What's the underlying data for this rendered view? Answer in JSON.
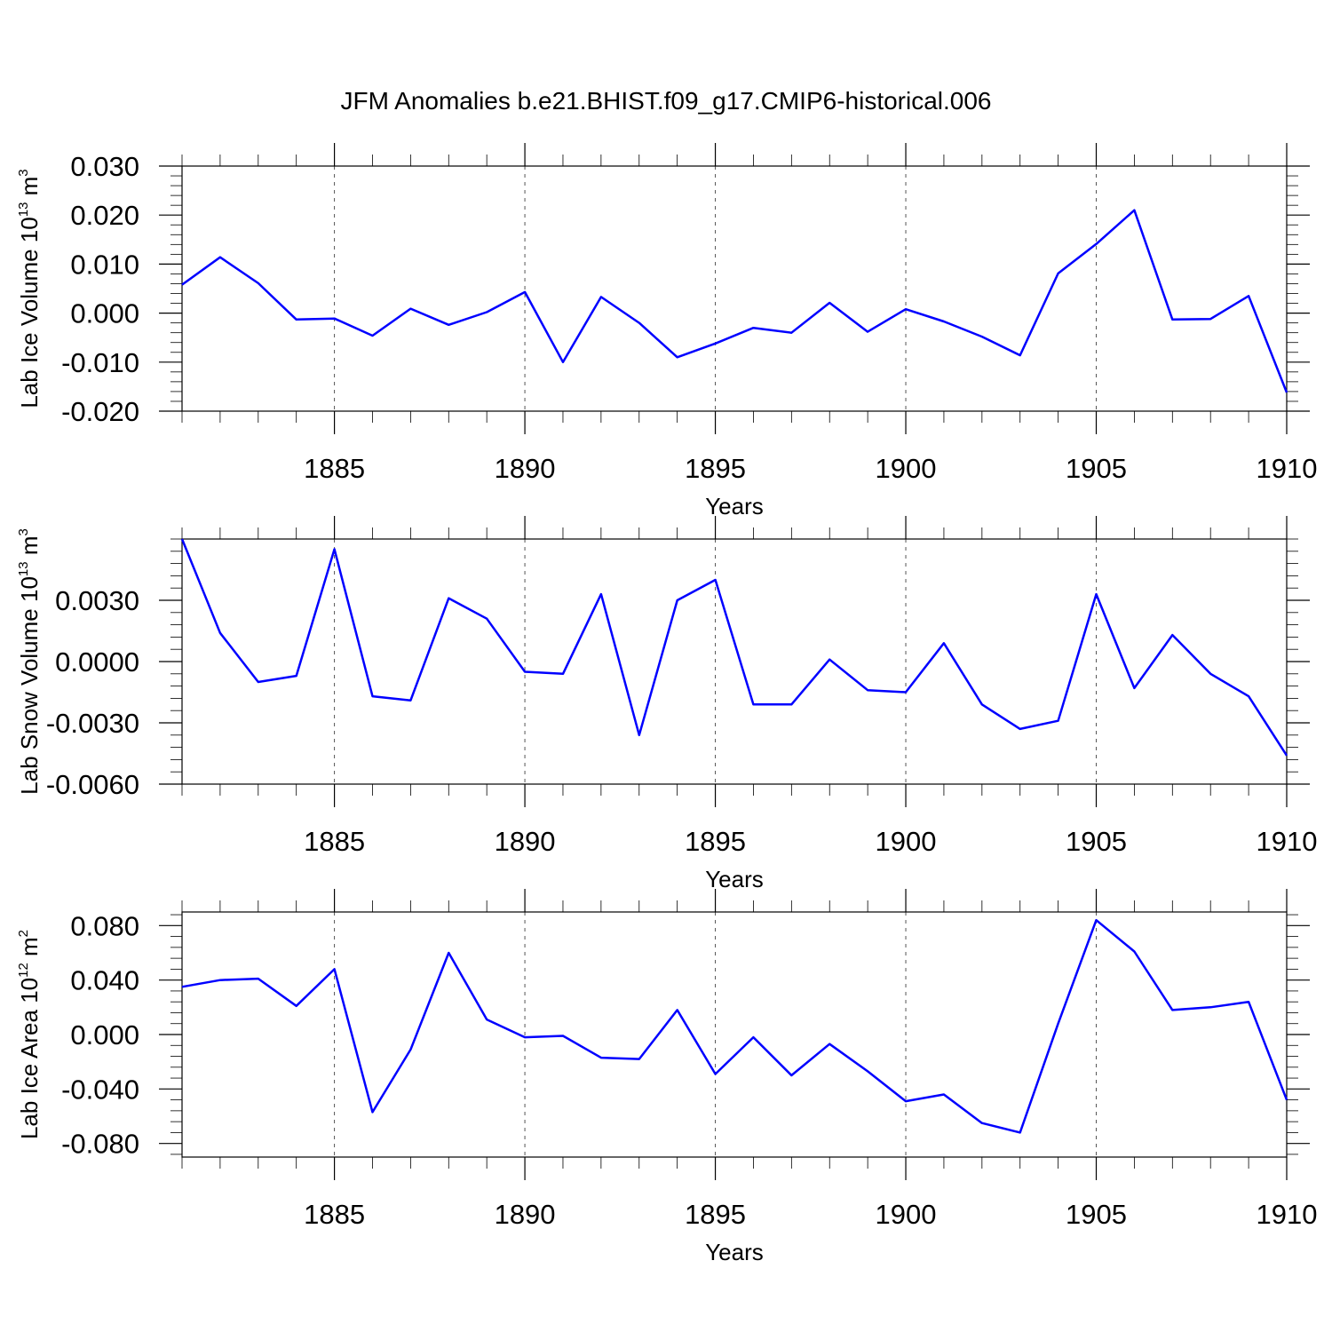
{
  "title": "JFM Anomalies b.e21.BHIST.f09_g17.CMIP6-historical.006",
  "colors": {
    "line": "#0000ff",
    "grid": "#555555",
    "axis": "#000000"
  },
  "chart_data": [
    {
      "type": "line",
      "xlabel": "Years",
      "ylabel": {
        "text": "Lab Ice Volume 10",
        "exp": "13",
        "unit": " m",
        "unit_exp": "3"
      },
      "x_ticks": [
        1885,
        1890,
        1895,
        1900,
        1905,
        1910
      ],
      "x_tick_labels": [
        "1885",
        "1890",
        "1895",
        "1900",
        "1905",
        "1910"
      ],
      "xlim": [
        1881,
        1910
      ],
      "ylim": [
        -0.02,
        0.03
      ],
      "y_ticks": [
        -0.02,
        -0.01,
        0.0,
        0.01,
        0.02,
        0.03
      ],
      "y_tick_labels": [
        "-0.020",
        "-0.010",
        "0.000",
        "0.010",
        "0.020",
        "0.030"
      ],
      "grid": "x dashed",
      "x": [
        1881,
        1882,
        1883,
        1884,
        1885,
        1886,
        1887,
        1888,
        1889,
        1890,
        1891,
        1892,
        1893,
        1894,
        1895,
        1896,
        1897,
        1898,
        1899,
        1900,
        1901,
        1902,
        1903,
        1904,
        1905,
        1906,
        1907,
        1908,
        1909,
        1910
      ],
      "series": [
        {
          "values": [
            0.0058,
            0.0114,
            0.0061,
            -0.0013,
            -0.0011,
            -0.0046,
            0.0009,
            -0.0024,
            0.0002,
            0.0043,
            -0.01,
            0.0033,
            -0.002,
            -0.009,
            -0.0062,
            -0.003,
            -0.004,
            0.0021,
            -0.0038,
            0.0008,
            -0.0017,
            -0.0048,
            -0.0086,
            0.0081,
            0.0141,
            0.021,
            -0.0013,
            -0.0012,
            0.0035,
            -0.0162
          ]
        }
      ]
    },
    {
      "type": "line",
      "xlabel": "Years",
      "ylabel": {
        "text": "Lab Snow Volume 10",
        "exp": "13",
        "unit": " m",
        "unit_exp": "3"
      },
      "x_ticks": [
        1885,
        1890,
        1895,
        1900,
        1905,
        1910
      ],
      "x_tick_labels": [
        "1885",
        "1890",
        "1895",
        "1900",
        "1905",
        "1910"
      ],
      "xlim": [
        1881,
        1910
      ],
      "ylim": [
        -0.006,
        0.006
      ],
      "y_ticks": [
        -0.006,
        -0.003,
        0.0,
        0.003
      ],
      "y_tick_labels": [
        "-0.0060",
        "-0.0030",
        "0.0000",
        "0.0030"
      ],
      "grid": "x dashed",
      "x": [
        1881,
        1882,
        1883,
        1884,
        1885,
        1886,
        1887,
        1888,
        1889,
        1890,
        1891,
        1892,
        1893,
        1894,
        1895,
        1896,
        1897,
        1898,
        1899,
        1900,
        1901,
        1902,
        1903,
        1904,
        1905,
        1906,
        1907,
        1908,
        1909,
        1910
      ],
      "series": [
        {
          "values": [
            0.006,
            0.0014,
            -0.001,
            -0.0007,
            0.0055,
            -0.0017,
            -0.0019,
            0.0031,
            0.0021,
            -0.0005,
            -0.0006,
            0.0033,
            -0.0036,
            0.003,
            0.004,
            -0.0021,
            -0.0021,
            0.0001,
            -0.0014,
            -0.0015,
            0.0009,
            -0.0021,
            -0.0033,
            -0.0029,
            0.0033,
            -0.0013,
            0.0013,
            -0.0006,
            -0.0017,
            -0.0046
          ]
        }
      ]
    },
    {
      "type": "line",
      "xlabel": "Years",
      "ylabel": {
        "text": "Lab Ice Area 10",
        "exp": "12",
        "unit": " m",
        "unit_exp": "2"
      },
      "x_ticks": [
        1885,
        1890,
        1895,
        1900,
        1905,
        1910
      ],
      "x_tick_labels": [
        "1885",
        "1890",
        "1895",
        "1900",
        "1905",
        "1910"
      ],
      "xlim": [
        1881,
        1910
      ],
      "ylim": [
        -0.09,
        0.09
      ],
      "y_ticks": [
        -0.08,
        -0.04,
        0.0,
        0.04,
        0.08
      ],
      "y_tick_labels": [
        "-0.080",
        "-0.040",
        "0.000",
        "0.040",
        "0.080"
      ],
      "grid": "x dashed",
      "x": [
        1881,
        1882,
        1883,
        1884,
        1885,
        1886,
        1887,
        1888,
        1889,
        1890,
        1891,
        1892,
        1893,
        1894,
        1895,
        1896,
        1897,
        1898,
        1899,
        1900,
        1901,
        1902,
        1903,
        1904,
        1905,
        1906,
        1907,
        1908,
        1909,
        1910
      ],
      "series": [
        {
          "values": [
            0.035,
            0.04,
            0.041,
            0.021,
            0.048,
            -0.057,
            -0.011,
            0.06,
            0.011,
            -0.002,
            -0.001,
            -0.017,
            -0.018,
            0.018,
            -0.029,
            -0.002,
            -0.03,
            -0.007,
            -0.027,
            -0.049,
            -0.044,
            -0.065,
            -0.072,
            0.008,
            0.084,
            0.061,
            0.018,
            0.02,
            0.024,
            -0.048
          ]
        }
      ]
    }
  ]
}
